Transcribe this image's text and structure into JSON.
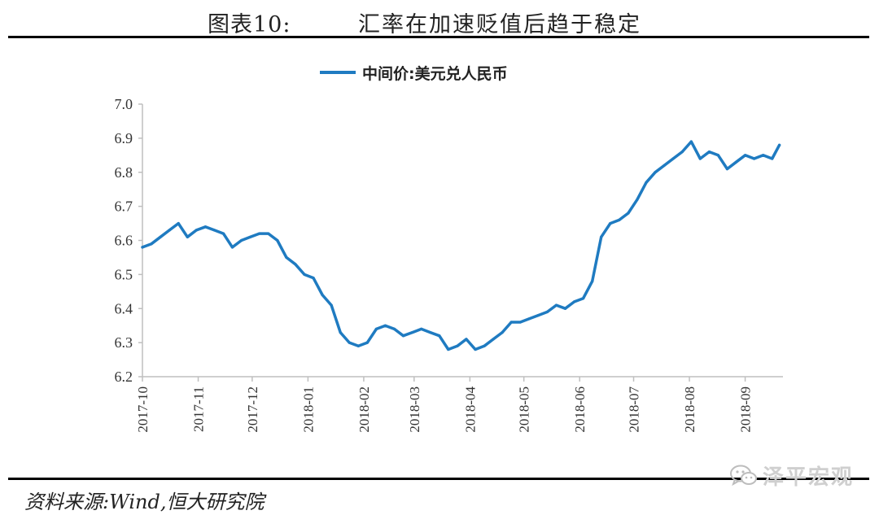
{
  "header": {
    "figure_label": "图表10:",
    "figure_title": "汇率在加速贬值后趋于稳定"
  },
  "footer": {
    "source": "资料来源:Wind,恒大研究院",
    "brand": "泽平宏观",
    "brand_icon": "wechat-icon"
  },
  "chart_data": {
    "type": "line",
    "title": "",
    "xlabel": "",
    "ylabel": "",
    "ylim": [
      6.2,
      7.0
    ],
    "yticks": [
      "6.2",
      "6.3",
      "6.4",
      "6.5",
      "6.6",
      "6.7",
      "6.8",
      "6.9",
      "7.0"
    ],
    "xtick_labels": [
      "2017-10",
      "2017-11",
      "2017-12",
      "2018-01",
      "2018-02",
      "2018-03",
      "2018-04",
      "2018-05",
      "2018-06",
      "2018-07",
      "2018-08",
      "2018-09"
    ],
    "legend_position": "top-center",
    "grid": false,
    "color": "#1f7bc1",
    "series": [
      {
        "name": "中间价:美元兑人民币",
        "x": [
          "2017-10-01",
          "2017-10-06",
          "2017-10-11",
          "2017-10-16",
          "2017-10-21",
          "2017-10-26",
          "2017-10-31",
          "2017-11-05",
          "2017-11-10",
          "2017-11-15",
          "2017-11-20",
          "2017-11-25",
          "2017-11-30",
          "2017-12-05",
          "2017-12-10",
          "2017-12-15",
          "2017-12-20",
          "2017-12-25",
          "2017-12-30",
          "2018-01-04",
          "2018-01-09",
          "2018-01-14",
          "2018-01-19",
          "2018-01-24",
          "2018-01-29",
          "2018-02-03",
          "2018-02-08",
          "2018-02-13",
          "2018-02-18",
          "2018-02-23",
          "2018-02-28",
          "2018-03-05",
          "2018-03-10",
          "2018-03-15",
          "2018-03-20",
          "2018-03-25",
          "2018-03-30",
          "2018-04-04",
          "2018-04-09",
          "2018-04-14",
          "2018-04-19",
          "2018-04-24",
          "2018-04-29",
          "2018-05-04",
          "2018-05-09",
          "2018-05-14",
          "2018-05-19",
          "2018-05-24",
          "2018-05-29",
          "2018-06-03",
          "2018-06-08",
          "2018-06-13",
          "2018-06-18",
          "2018-06-23",
          "2018-06-28",
          "2018-07-03",
          "2018-07-08",
          "2018-07-13",
          "2018-07-18",
          "2018-07-23",
          "2018-07-28",
          "2018-08-02",
          "2018-08-07",
          "2018-08-12",
          "2018-08-17",
          "2018-08-22",
          "2018-08-27",
          "2018-09-01",
          "2018-09-06",
          "2018-09-11",
          "2018-09-16",
          "2018-09-20"
        ],
        "values": [
          6.58,
          6.59,
          6.61,
          6.63,
          6.65,
          6.61,
          6.63,
          6.64,
          6.63,
          6.62,
          6.58,
          6.6,
          6.61,
          6.62,
          6.62,
          6.6,
          6.55,
          6.53,
          6.5,
          6.49,
          6.44,
          6.41,
          6.33,
          6.3,
          6.29,
          6.3,
          6.34,
          6.35,
          6.34,
          6.32,
          6.33,
          6.34,
          6.33,
          6.32,
          6.28,
          6.29,
          6.31,
          6.28,
          6.29,
          6.31,
          6.33,
          6.36,
          6.36,
          6.37,
          6.38,
          6.39,
          6.41,
          6.4,
          6.42,
          6.43,
          6.48,
          6.61,
          6.65,
          6.66,
          6.68,
          6.72,
          6.77,
          6.8,
          6.82,
          6.84,
          6.86,
          6.89,
          6.84,
          6.86,
          6.85,
          6.81,
          6.83,
          6.85,
          6.84,
          6.85,
          6.84,
          6.88
        ]
      }
    ]
  }
}
